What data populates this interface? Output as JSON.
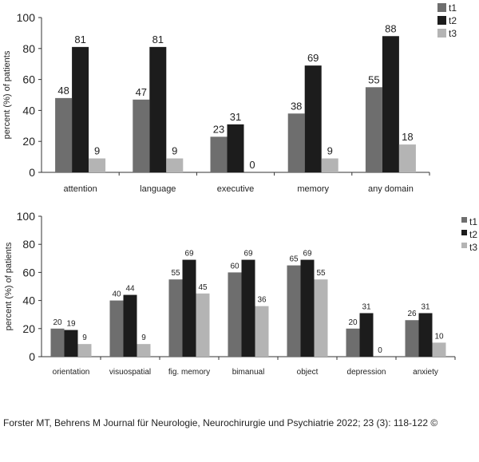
{
  "chart_data": [
    {
      "type": "bar",
      "categories": [
        "attention",
        "language",
        "executive",
        "memory",
        "any domain"
      ],
      "series": [
        {
          "name": "t1",
          "values": [
            48,
            47,
            23,
            38,
            55
          ],
          "color": "#6e6e6e"
        },
        {
          "name": "t2",
          "values": [
            81,
            81,
            31,
            69,
            88
          ],
          "color": "#1c1c1c"
        },
        {
          "name": "t3",
          "values": [
            9,
            9,
            0,
            9,
            18
          ],
          "color": "#b4b4b4"
        }
      ],
      "ylabel": "percent (%) of patients",
      "ylim": [
        0,
        100
      ],
      "yticks": [
        0,
        20,
        40,
        60,
        80,
        100
      ],
      "grid": false,
      "legend": "top-right"
    },
    {
      "type": "bar",
      "categories": [
        "orientation",
        "visuospatial",
        "fig. memory",
        "bimanual",
        "object",
        "depression",
        "anxiety"
      ],
      "series": [
        {
          "name": "t1",
          "values": [
            20,
            40,
            55,
            60,
            65,
            20,
            26
          ],
          "color": "#6e6e6e"
        },
        {
          "name": "t2",
          "values": [
            19,
            44,
            69,
            69,
            69,
            31,
            31
          ],
          "color": "#1c1c1c"
        },
        {
          "name": "t3",
          "values": [
            9,
            9,
            45,
            36,
            55,
            0,
            10
          ],
          "color": "#b4b4b4"
        }
      ],
      "ylabel": "percent (%) of patients",
      "ylim": [
        0,
        100
      ],
      "yticks": [
        0,
        20,
        40,
        60,
        80,
        100
      ],
      "grid": false,
      "legend": "top-right"
    }
  ],
  "credit": "Forster MT, Behrens M Journal für Neurologie, Neurochirurgie und Psychiatrie 2022; 23 (3): 118-122 ©"
}
